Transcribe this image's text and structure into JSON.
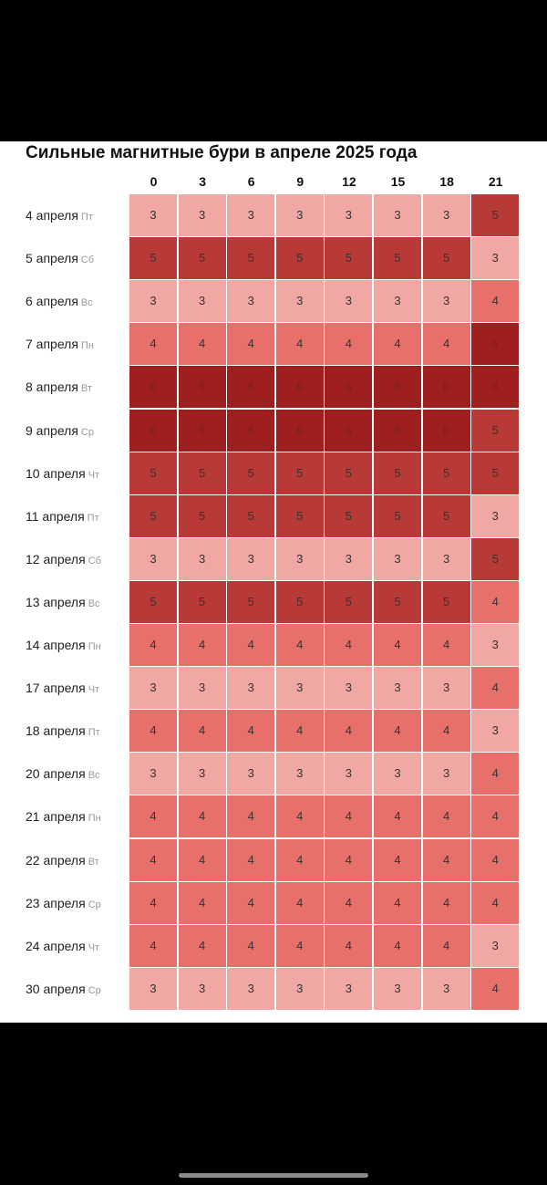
{
  "title": "Сильные магнитные бури в апреле 2025 года",
  "chart_data": {
    "type": "heatmap",
    "title": "Сильные магнитные бури в апреле 2025 года",
    "columns": [
      "0",
      "3",
      "6",
      "9",
      "12",
      "15",
      "18",
      "21"
    ],
    "rows": [
      {
        "date": "4 апреля",
        "dow": "Пт",
        "values": [
          3,
          3,
          3,
          3,
          3,
          3,
          3,
          5
        ]
      },
      {
        "date": "5 апреля",
        "dow": "Сб",
        "values": [
          5,
          5,
          5,
          5,
          5,
          5,
          5,
          3
        ]
      },
      {
        "date": "6 апреля",
        "dow": "Вс",
        "values": [
          3,
          3,
          3,
          3,
          3,
          3,
          3,
          4
        ]
      },
      {
        "date": "7 апреля",
        "dow": "Пн",
        "values": [
          4,
          4,
          4,
          4,
          4,
          4,
          4,
          6
        ]
      },
      {
        "date": "8 апреля",
        "dow": "Вт",
        "values": [
          6,
          6,
          6,
          6,
          6,
          6,
          6,
          6
        ]
      },
      {
        "date": "9 апреля",
        "dow": "Ср",
        "values": [
          6,
          6,
          6,
          6,
          6,
          6,
          6,
          5
        ]
      },
      {
        "date": "10 апреля",
        "dow": "Чт",
        "values": [
          5,
          5,
          5,
          5,
          5,
          5,
          5,
          5
        ]
      },
      {
        "date": "11 апреля",
        "dow": "Пт",
        "values": [
          5,
          5,
          5,
          5,
          5,
          5,
          5,
          3
        ]
      },
      {
        "date": "12 апреля",
        "dow": "Сб",
        "values": [
          3,
          3,
          3,
          3,
          3,
          3,
          3,
          5
        ]
      },
      {
        "date": "13 апреля",
        "dow": "Вс",
        "values": [
          5,
          5,
          5,
          5,
          5,
          5,
          5,
          4
        ]
      },
      {
        "date": "14 апреля",
        "dow": "Пн",
        "values": [
          4,
          4,
          4,
          4,
          4,
          4,
          4,
          3
        ]
      },
      {
        "date": "17 апреля",
        "dow": "Чт",
        "values": [
          3,
          3,
          3,
          3,
          3,
          3,
          3,
          4
        ]
      },
      {
        "date": "18 апреля",
        "dow": "Пт",
        "values": [
          4,
          4,
          4,
          4,
          4,
          4,
          4,
          3
        ]
      },
      {
        "date": "20 апреля",
        "dow": "Вс",
        "values": [
          3,
          3,
          3,
          3,
          3,
          3,
          3,
          4
        ]
      },
      {
        "date": "21 апреля",
        "dow": "Пн",
        "values": [
          4,
          4,
          4,
          4,
          4,
          4,
          4,
          4
        ]
      },
      {
        "date": "22 апреля",
        "dow": "Вт",
        "values": [
          4,
          4,
          4,
          4,
          4,
          4,
          4,
          4
        ]
      },
      {
        "date": "23 апреля",
        "dow": "Ср",
        "values": [
          4,
          4,
          4,
          4,
          4,
          4,
          4,
          4
        ]
      },
      {
        "date": "24 апреля",
        "dow": "Чт",
        "values": [
          4,
          4,
          4,
          4,
          4,
          4,
          4,
          3
        ]
      },
      {
        "date": "30 апреля",
        "dow": "Ср",
        "values": [
          3,
          3,
          3,
          3,
          3,
          3,
          3,
          4
        ]
      }
    ],
    "colors": {
      "3": "#f1a8a5",
      "4": "#e8706b",
      "5": "#b83a36",
      "6": "#9e1f1e"
    }
  }
}
